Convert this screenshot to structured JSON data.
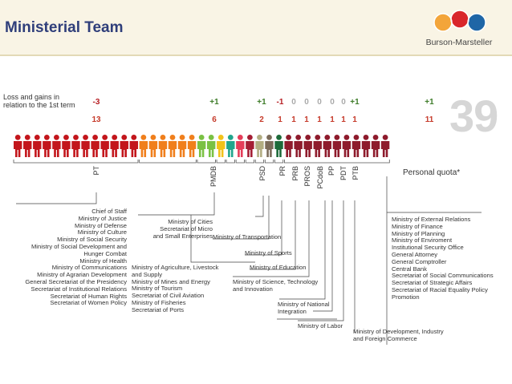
{
  "header": {
    "title": "Ministerial Team",
    "logo_text": "Burson-Marsteller",
    "big_number": "39"
  },
  "intro_label": "Loss and gains in\nrelation to the 1st term",
  "colors": {
    "header_bg": "#f9f4e5",
    "title": "#2f3e7a",
    "loss": "#b72025",
    "gain": "#3f7d2a",
    "neutral": "#aaaaaa",
    "count": "#c63a2a"
  },
  "parties": [
    {
      "label": "PT",
      "change": "-3",
      "count": "13",
      "figures": 13,
      "color": "#c3161c"
    },
    {
      "label": "PMDB",
      "change": "+1",
      "count": "6",
      "figures": 6,
      "color": "#f07f1c"
    },
    {
      "label": "PSD",
      "change": "+1",
      "count": "2",
      "figures": 2,
      "color": "#7ac143"
    },
    {
      "label": "PR",
      "change": "-1",
      "count": "1",
      "figures": 1,
      "color": "#f2c21a"
    },
    {
      "label": "PRB",
      "change": "0",
      "count": "1",
      "figures": 1,
      "color": "#21a58c"
    },
    {
      "label": "PROS",
      "change": "0",
      "count": "1",
      "figures": 1,
      "color": "#e53d59"
    },
    {
      "label": "PCdoB",
      "change": "0",
      "count": "1",
      "figures": 1,
      "color": "#a41e34"
    },
    {
      "label": "PP",
      "change": "0",
      "count": "1",
      "figures": 1,
      "color": "#b2ad82"
    },
    {
      "label": "PDT",
      "change": "0",
      "count": "1",
      "figures": 1,
      "color": "#7b6b5a"
    },
    {
      "label": "PTB",
      "change": "+1",
      "count": "1",
      "figures": 1,
      "color": "#1d6b3a"
    },
    {
      "label": "Personal quota*",
      "change": "+1",
      "count": "11",
      "figures": 11,
      "color": "#8e1b2c"
    }
  ],
  "ministries": {
    "pt": "Chief of Staff\nMinistry of Justice\nMinistry of Defense\nMinistry of Culture\nMinistry of Social Security\nMinistry of Social Development and\nHunger Combat\nMinistry of Health\nMinistry of Communications\nMinistry of Agrarian Development\nGeneral Secretariat of the Presidency\nSecretariat of Institutional Relations\nSecretariat of Human Rights\nSecretariat of Women Policy",
    "pmdb_a": "Ministry of Cities\nSecretariat of Micro\nand Small Enterprises",
    "pmdb_b": "Ministry of Agriculture, Livestock\nand Supply\nMinistry of Mines and Energy\nMinistry of Tourism\nSecretariat of Civil Aviation\nMinistry of Fisheries\nSecretariat of Ports",
    "psd": "Ministry of Transportation",
    "pr": "Ministry of Sports",
    "prb": "Ministry of Education",
    "pros": "Ministry of Science, Technology\nand Innovation",
    "pp": "Ministry of National\nIntegration",
    "pdt": "Ministry of Labor",
    "ptb": "Ministry of Development, Industry\nand Foreign Commerce",
    "quota": "Ministry of External Relations\nMinistry of Finance\nMinistry of Planning\nMinistry of Enviroment\nInstitutional Security Office\nGeneral Attorney\nGeneral Comptroller\nCentral Bank\nSecretariat of Social Communications\nSecretariat of Strategic Affairs\nSecretariat of Racial Equality Policy\nPromotion"
  }
}
